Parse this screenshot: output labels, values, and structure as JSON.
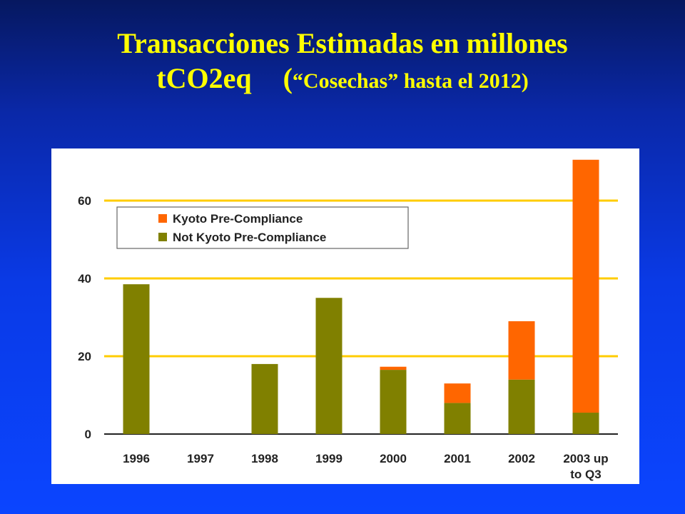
{
  "title": {
    "line1": "Transacciones Estimadas en millones",
    "line2_main": "tCO2eq",
    "line2_paren_open": "(",
    "line2_sub": "“Cosechas” hasta el 2012)"
  },
  "chart_data": {
    "type": "bar",
    "stacked": true,
    "categories": [
      "1996",
      "1997",
      "1998",
      "1999",
      "2000",
      "2001",
      "2002",
      "2003 up|to Q3"
    ],
    "series": [
      {
        "name": "Not Kyoto Pre-Compliance",
        "color": "#808000",
        "values": [
          38.5,
          0,
          18,
          35,
          16.5,
          8,
          14,
          5.5
        ]
      },
      {
        "name": "Kyoto Pre-Compliance",
        "color": "#ff6600",
        "values": [
          0,
          0,
          0,
          0,
          0.8,
          5,
          15,
          65
        ]
      }
    ],
    "yticks": [
      0,
      20,
      40,
      60
    ],
    "ylim": [
      0,
      72
    ],
    "grid": true,
    "grid_color": "#ffcc00",
    "legend": "top-left",
    "legend_order": [
      "Kyoto Pre-Compliance",
      "Not Kyoto Pre-Compliance"
    ]
  }
}
